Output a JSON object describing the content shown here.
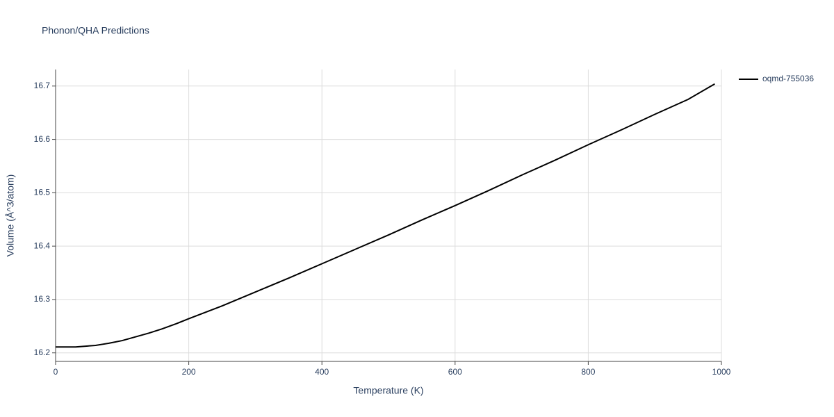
{
  "chart_data": {
    "type": "line",
    "title": "Phonon/QHA Predictions",
    "x_label": "Temperature (K)",
    "y_label": "Volume (Å^3/atom)",
    "x": [
      0,
      20,
      30,
      40,
      60,
      70,
      80,
      100,
      120,
      140,
      160,
      180,
      200,
      250,
      300,
      350,
      400,
      450,
      500,
      550,
      600,
      650,
      700,
      750,
      800,
      850,
      900,
      950,
      990
    ],
    "series": [
      {
        "name": "oqmd-755036",
        "color": "#000000",
        "values": [
          16.211,
          16.211,
          16.211,
          16.212,
          16.214,
          16.216,
          16.218,
          16.223,
          16.23,
          16.237,
          16.245,
          16.254,
          16.264,
          16.288,
          16.314,
          16.34,
          16.367,
          16.394,
          16.421,
          16.449,
          16.476,
          16.504,
          16.533,
          16.561,
          16.59,
          16.618,
          16.647,
          16.675,
          16.704
        ]
      }
    ],
    "xlim": [
      0,
      1000
    ],
    "xticks": [
      0,
      200,
      400,
      600,
      800,
      1000
    ],
    "ylim": [
      16.184,
      16.731
    ],
    "yticks": [
      16.2,
      16.3,
      16.4,
      16.5,
      16.6,
      16.7
    ],
    "grid": true
  }
}
